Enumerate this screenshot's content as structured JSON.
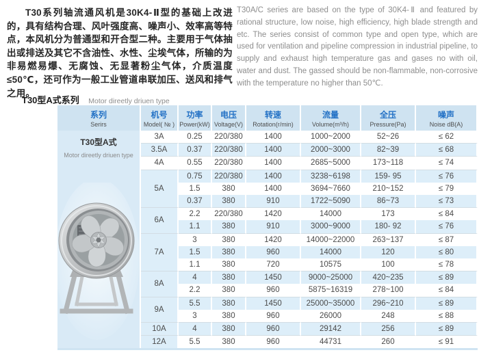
{
  "intro": {
    "chinese": "T30系列轴流通风机是30K4-Ⅱ型的基础上改进的，具有结构合理、风叶强度高、噪声小、效率高等特点，本风机分为普通型和开合型二种。主要用于气体抽出或排送及其它不含油性、水性、尘埃气体，所输的为非易燃易爆、无腐蚀、无显著粉尘气体，介质温度≤50℃，还可作为一般工业管道串联加压、送风和排气之用。",
    "english": "T30A/C series are based on the type of 30K4-Ⅱ and featured by rational structure, low noise, high efficiency, high blade strength and etc. The series consist of common type and open type, which are used for ventilation and pipeline compression in industrial pipeline, to supply and exhaust high temperature gas and gases no with oil, water and dust. The gassed should be non-flammable, non-corrosive with the temperature no higher than 50℃."
  },
  "section": {
    "title_cn": "T30型A式系列",
    "title_en": "Motor direetly driuen type"
  },
  "table": {
    "headers": [
      {
        "cn": "系列",
        "en": "Serirs"
      },
      {
        "cn": "机号",
        "en": "Model( № )"
      },
      {
        "cn": "功率",
        "en": "Power(kW)"
      },
      {
        "cn": "电压",
        "en": "Voltage(V)"
      },
      {
        "cn": "转速",
        "en": "Rotation(r/min)"
      },
      {
        "cn": "流量",
        "en": "Volume(m³/h)"
      },
      {
        "cn": "全压",
        "en": "Pressure(Pa)"
      },
      {
        "cn": "噪声",
        "en": "Noise dB(A)"
      }
    ],
    "series_cell": {
      "title": "T30型A式",
      "subtitle": "Motor direetly driuen type",
      "image": "axial-fan-product-photo"
    },
    "groups": [
      {
        "model": "3A",
        "model_bg": "white",
        "rows": [
          [
            "0.25",
            "220/380",
            "1400",
            "1000~2000",
            "52~26",
            "≤ 62"
          ]
        ]
      },
      {
        "model": "3.5A",
        "model_bg": "blue",
        "rows": [
          [
            "0.37",
            "220/380",
            "1400",
            "2000~3000",
            "82~39",
            "≤ 68"
          ]
        ]
      },
      {
        "model": "4A",
        "model_bg": "white",
        "rows": [
          [
            "0.55",
            "220/380",
            "1400",
            "2685~5000",
            "173~118",
            "≤ 74"
          ]
        ]
      },
      {
        "model": "5A",
        "model_bg": "blue",
        "rows": [
          [
            "0.75",
            "220/380",
            "1400",
            "3238~6198",
            "159- 95",
            "≤ 76"
          ],
          [
            "1.5",
            "380",
            "1400",
            "3694~7660",
            "210~152",
            "≤ 79"
          ],
          [
            "0.37",
            "380",
            "910",
            "1722~5090",
            "86~73",
            "≤ 73"
          ]
        ]
      },
      {
        "model": "6A",
        "model_bg": "blue",
        "rows": [
          [
            "2.2",
            "220/380",
            "1420",
            "14000",
            "173",
            "≤ 84"
          ],
          [
            "1.1",
            "380",
            "910",
            "3000~9000",
            "180- 92",
            "≤ 76"
          ]
        ]
      },
      {
        "model": "7A",
        "model_bg": "blue",
        "rows": [
          [
            "3",
            "380",
            "1420",
            "14000~22000",
            "263~137",
            "≤ 87"
          ],
          [
            "1.5",
            "380",
            "960",
            "14000",
            "120",
            "≤ 80"
          ],
          [
            "1.1",
            "380",
            "720",
            "10575",
            "100",
            "≤ 78"
          ]
        ]
      },
      {
        "model": "8A",
        "model_bg": "blue",
        "rows": [
          [
            "4",
            "380",
            "1450",
            "9000~25000",
            "420~235",
            "≤ 89"
          ],
          [
            "2.2",
            "380",
            "960",
            "5875~16319",
            "278~100",
            "≤ 84"
          ]
        ]
      },
      {
        "model": "9A",
        "model_bg": "blue",
        "rows": [
          [
            "5.5",
            "380",
            "1450",
            "25000~35000",
            "296~210",
            "≤ 89"
          ],
          [
            "3",
            "380",
            "960",
            "26000",
            "248",
            "≤ 88"
          ]
        ]
      },
      {
        "model": "10A",
        "model_bg": "blue",
        "rows": [
          [
            "4",
            "380",
            "960",
            "29142",
            "256",
            "≤ 89"
          ]
        ]
      },
      {
        "model": "12A",
        "model_bg": "blue",
        "rows": [
          [
            "5.5",
            "380",
            "960",
            "44731",
            "260",
            "≤ 91"
          ]
        ]
      }
    ]
  },
  "colors": {
    "header_bg": "#cfe3f1",
    "header_text_blue": "#2371c5",
    "row_alt_blue": "#ddeef9",
    "series_cell_bg": "#d9eaf6"
  }
}
